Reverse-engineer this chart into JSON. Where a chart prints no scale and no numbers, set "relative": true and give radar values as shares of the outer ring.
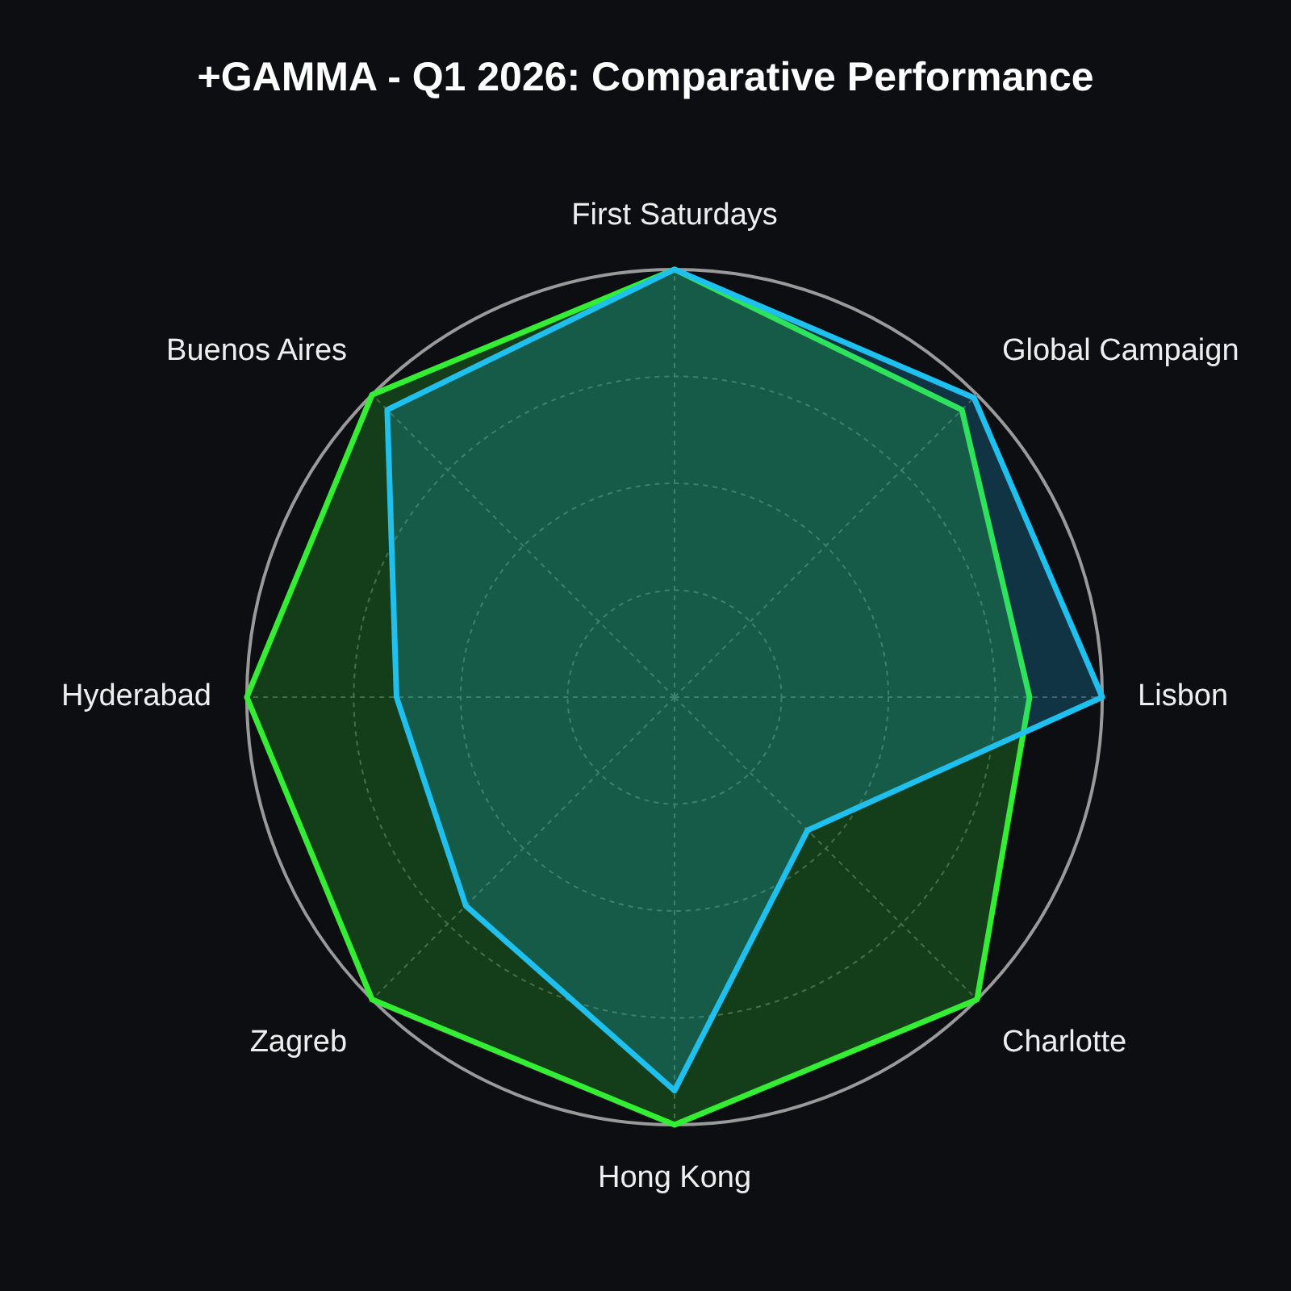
{
  "chart_data": {
    "type": "radar",
    "title": "+GAMMA - Q1 2026: Comparative Performance",
    "relative": true,
    "categories": [
      "First Saturdays",
      "Global Campaign",
      "Lisbon",
      "Charlotte",
      "Hong Kong",
      "Zagreb",
      "Hyderabad",
      "Buenos Aires"
    ],
    "series": [
      {
        "color": "#1ec0f0",
        "values": [
          1.0,
          0.99,
          1.0,
          0.44,
          0.92,
          0.69,
          0.65,
          0.95
        ]
      },
      {
        "color": "#33ee33",
        "values": [
          1.0,
          0.95,
          0.83,
          1.0,
          1.0,
          1.0,
          1.0,
          1.0
        ]
      }
    ],
    "grid": true,
    "legend": false,
    "marker": "none",
    "line_style": "solid"
  }
}
